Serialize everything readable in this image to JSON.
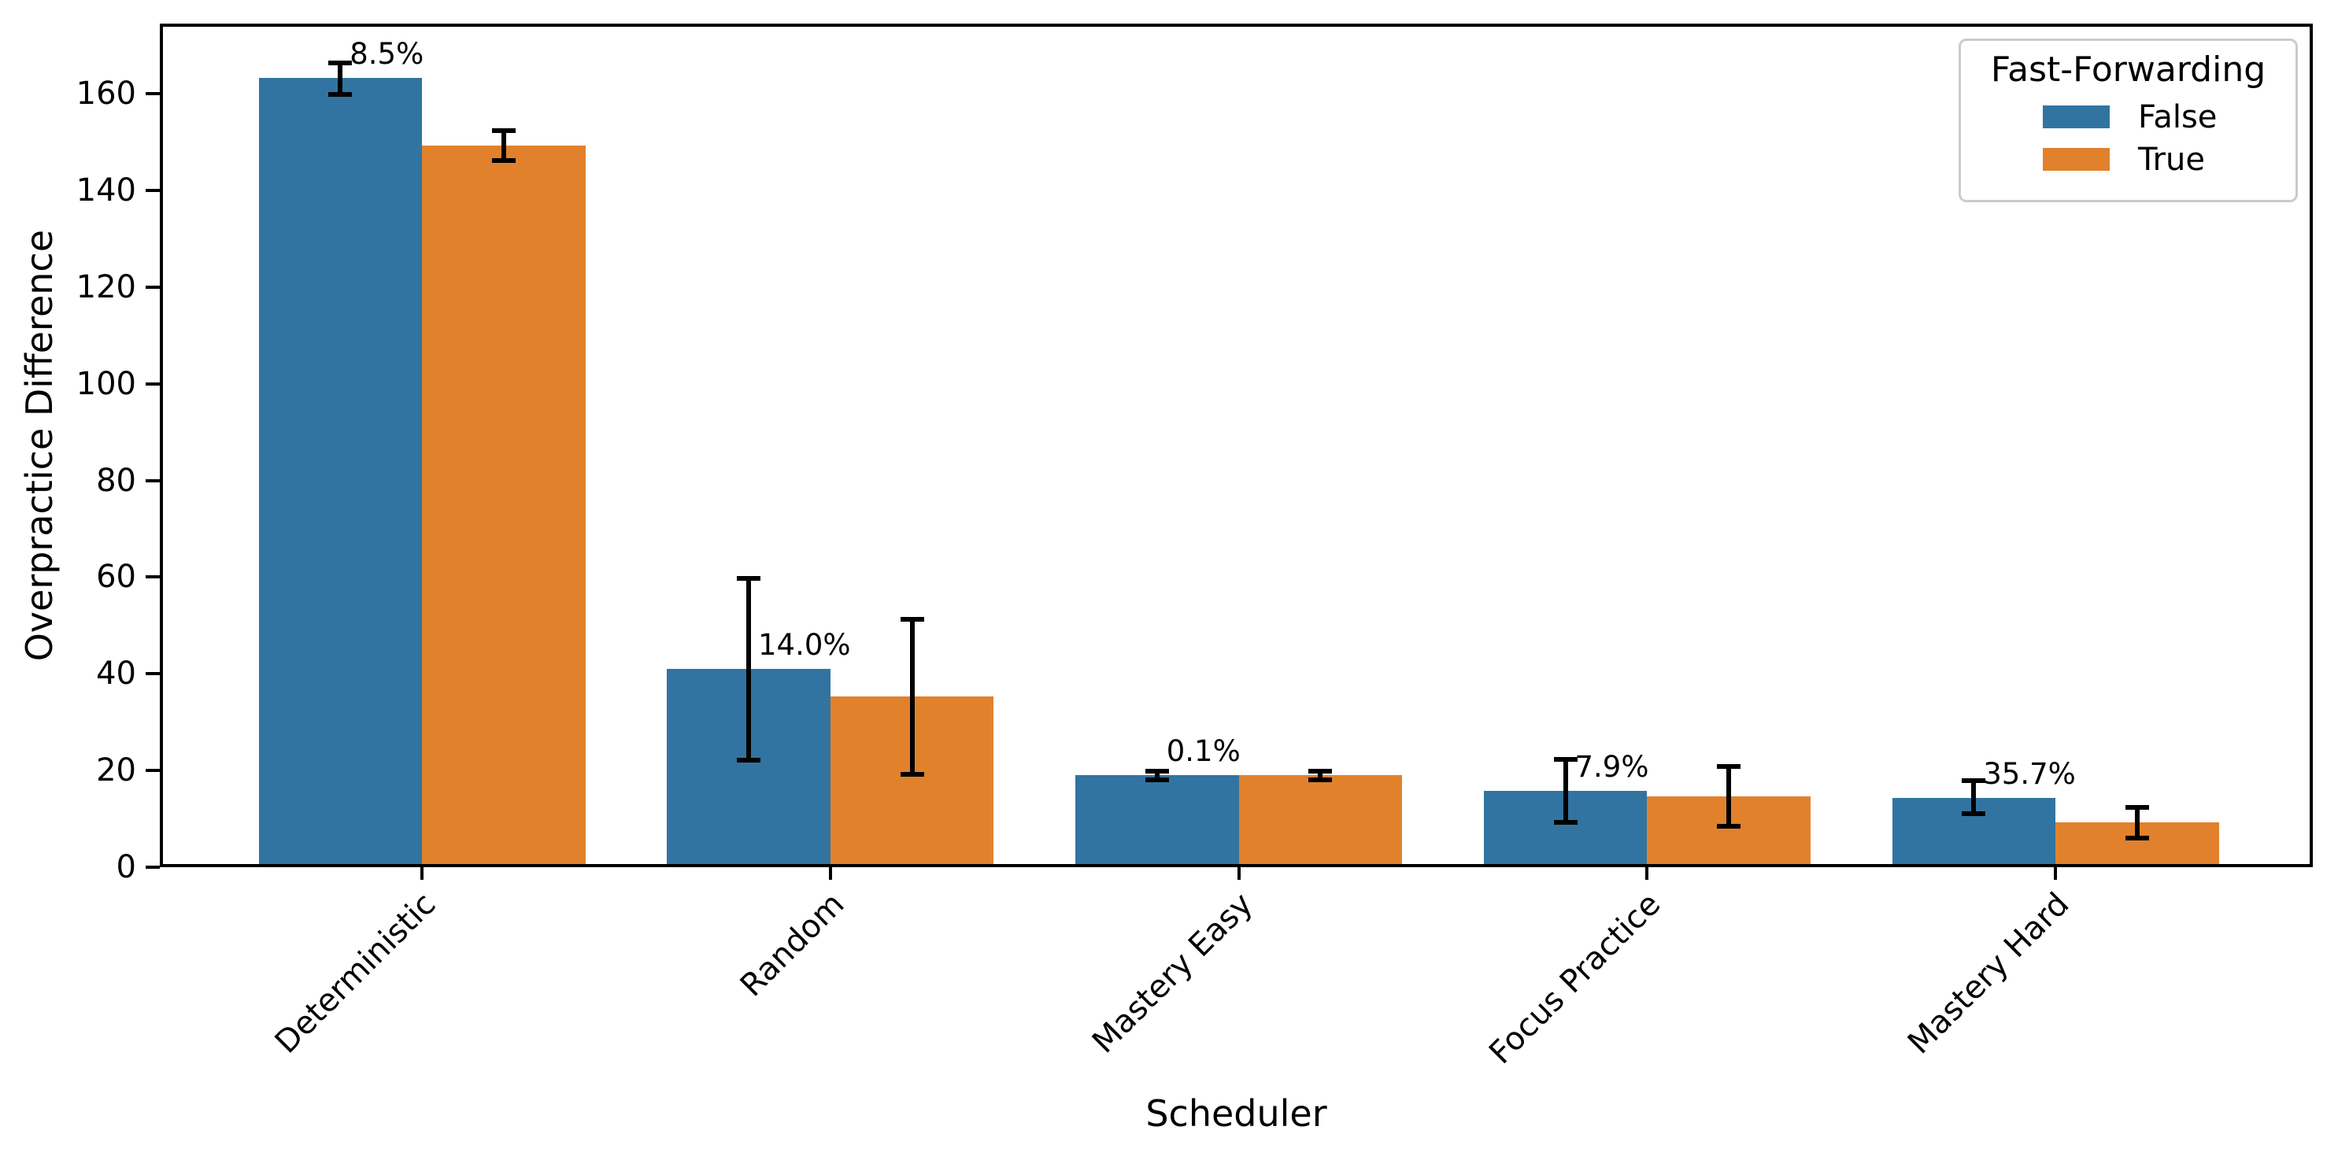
{
  "chart_data": {
    "type": "bar",
    "title": "",
    "xlabel": "Scheduler",
    "ylabel": "Overpractice Difference",
    "categories": [
      "Deterministic",
      "Random",
      "Mastery Easy",
      "Focus Practice",
      "Mastery Hard"
    ],
    "series": [
      {
        "name": "False",
        "color": "#3274a1",
        "values": [
          163.2,
          41.0,
          19.0,
          15.8,
          14.3
        ],
        "err_low": [
          159.9,
          22.1,
          18.0,
          9.3,
          11.0
        ],
        "err_high": [
          166.3,
          59.7,
          19.9,
          22.3,
          17.9
        ]
      },
      {
        "name": "True",
        "color": "#e1812c",
        "values": [
          149.3,
          35.3,
          19.0,
          14.6,
          9.2
        ],
        "err_low": [
          146.2,
          19.2,
          18.1,
          8.5,
          6.1
        ],
        "err_high": [
          152.3,
          51.2,
          19.9,
          20.8,
          12.3
        ]
      }
    ],
    "annotations": [
      "8.5%",
      "14.0%",
      "0.1%",
      "7.9%",
      "35.7%"
    ],
    "legend": {
      "title": "Fast-Forwarding",
      "position": "upper right"
    },
    "yticks": [
      0,
      20,
      40,
      60,
      80,
      100,
      120,
      140,
      160
    ],
    "ylim": [
      0,
      174.5
    ],
    "grid": false,
    "error_bar_color": "#000000",
    "spine_color": "#000000"
  }
}
